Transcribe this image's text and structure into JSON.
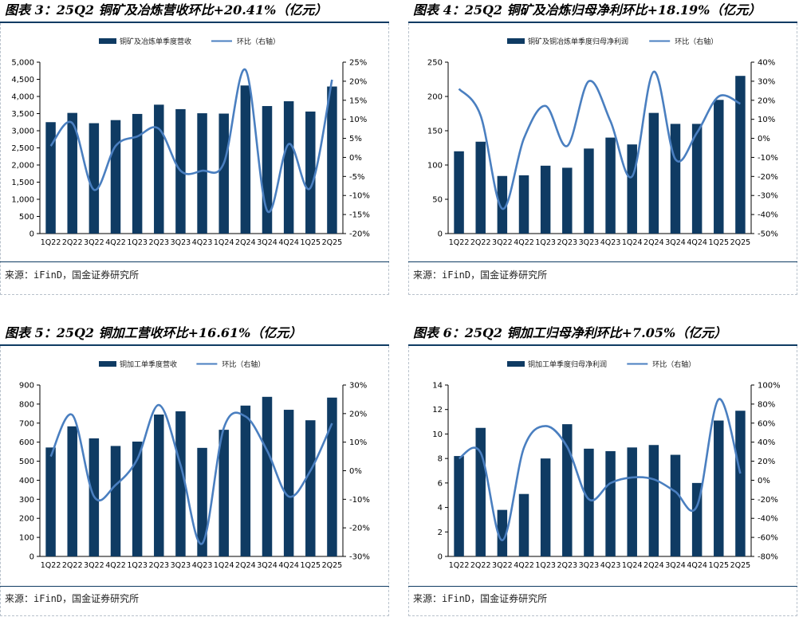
{
  "source_text": "来源：iFinD，国金证券研究所",
  "colors": {
    "bar": "#0f3b63",
    "line": "#4a7fc0",
    "axis": "#000000",
    "rule": "#0f3b63"
  },
  "chart_data": [
    {
      "type": "bar",
      "title": "图表 3：25Q2 铜矿及冶炼营收环比+20.41%（亿元）",
      "legend": [
        "铜矿及冶炼单季度营收",
        "环比（右轴）"
      ],
      "legend_position": "top",
      "categories": [
        "1Q22",
        "2Q22",
        "3Q22",
        "4Q22",
        "1Q23",
        "2Q23",
        "3Q23",
        "4Q23",
        "1Q24",
        "2Q24",
        "3Q24",
        "4Q24",
        "1Q25",
        "2Q25"
      ],
      "values": [
        3250,
        3520,
        3220,
        3310,
        3490,
        3760,
        3630,
        3510,
        3500,
        4320,
        3720,
        3860,
        3560,
        4290
      ],
      "line_values": [
        3,
        9,
        -8.5,
        3,
        5.5,
        7.5,
        -3.5,
        -3.5,
        -1.5,
        23,
        -14,
        3.5,
        -8,
        20.4
      ],
      "y_left": {
        "min": 0,
        "max": 5000,
        "step": 500,
        "ticks": [
          "0",
          "500",
          "1,000",
          "1,500",
          "2,000",
          "2,500",
          "3,000",
          "3,500",
          "4,000",
          "4,500",
          "5,000"
        ]
      },
      "y_right": {
        "min": -20,
        "max": 25,
        "step": 5,
        "ticks": [
          "-20%",
          "-15%",
          "-10%",
          "-5%",
          "0%",
          "5%",
          "10%",
          "15%",
          "20%",
          "25%"
        ]
      }
    },
    {
      "type": "bar",
      "title": "图表 4：25Q2 铜矿及冶炼归母净利环比+18.19%（亿元）",
      "legend": [
        "铜矿及铜冶炼单季度归母净利润",
        "环比（右轴）"
      ],
      "legend_position": "top",
      "categories": [
        "1Q22",
        "2Q22",
        "3Q22",
        "4Q22",
        "1Q23",
        "2Q23",
        "3Q23",
        "4Q23",
        "1Q24",
        "2Q24",
        "3Q24",
        "4Q24",
        "1Q25",
        "2Q25"
      ],
      "values": [
        120,
        134,
        84,
        85,
        99,
        96,
        124,
        140,
        130,
        176,
        160,
        160,
        195,
        230
      ],
      "line_values": [
        26,
        12,
        -37,
        0,
        17,
        -4,
        30,
        9,
        -20,
        35,
        -11,
        3,
        22,
        18.19
      ],
      "y_left": {
        "min": 0,
        "max": 250,
        "step": 50,
        "ticks": [
          "0",
          "50",
          "100",
          "150",
          "200",
          "250"
        ]
      },
      "y_right": {
        "min": -50,
        "max": 40,
        "step": 10,
        "ticks": [
          "-50%",
          "-40%",
          "-30%",
          "-20%",
          "-10%",
          "0%",
          "10%",
          "20%",
          "30%",
          "40%"
        ]
      }
    },
    {
      "type": "bar",
      "title": "图表 5：25Q2 铜加工营收环比+16.61%（亿元）",
      "legend": [
        "铜加工单季度营收",
        "环比（右轴）"
      ],
      "legend_position": "top",
      "categories": [
        "1Q22",
        "2Q22",
        "3Q22",
        "4Q22",
        "1Q23",
        "2Q23",
        "3Q23",
        "4Q23",
        "1Q24",
        "2Q24",
        "3Q24",
        "4Q24",
        "1Q25",
        "2Q25"
      ],
      "values": [
        572,
        683,
        620,
        580,
        603,
        745,
        762,
        570,
        665,
        792,
        838,
        770,
        715,
        834
      ],
      "line_values": [
        5,
        19.5,
        -9,
        -5,
        4,
        23,
        2,
        -25.5,
        15,
        19,
        7,
        -9,
        0,
        16.61
      ],
      "y_left": {
        "min": 0,
        "max": 900,
        "step": 100,
        "ticks": [
          "0",
          "100",
          "200",
          "300",
          "400",
          "500",
          "600",
          "700",
          "800",
          "900"
        ]
      },
      "y_right": {
        "min": -30,
        "max": 30,
        "step": 10,
        "ticks": [
          "-30%",
          "-20%",
          "-10%",
          "0%",
          "10%",
          "20%",
          "30%"
        ]
      }
    },
    {
      "type": "bar",
      "title": "图表 6：25Q2 铜加工归母净利环比+7.05%（亿元）",
      "legend": [
        "铜加工单季度归母净利润",
        "环比（右轴）"
      ],
      "legend_position": "top",
      "categories": [
        "1Q22",
        "2Q22",
        "3Q22",
        "4Q22",
        "1Q23",
        "2Q23",
        "3Q23",
        "4Q23",
        "1Q24",
        "2Q24",
        "3Q24",
        "4Q24",
        "1Q25",
        "2Q25"
      ],
      "values": [
        8.2,
        10.5,
        3.8,
        5.1,
        8.0,
        10.8,
        8.8,
        8.6,
        8.9,
        9.1,
        8.3,
        6.0,
        11.1,
        11.9
      ],
      "line_values": [
        23,
        29,
        -63,
        34,
        57,
        35,
        -20,
        -3,
        3,
        1,
        -12,
        -27,
        85,
        7.05
      ],
      "y_left": {
        "min": 0,
        "max": 14,
        "step": 2,
        "ticks": [
          "0",
          "2",
          "4",
          "6",
          "8",
          "10",
          "12",
          "14"
        ]
      },
      "y_right": {
        "min": -80,
        "max": 100,
        "step": 20,
        "ticks": [
          "-80%",
          "-60%",
          "-40%",
          "-20%",
          "0%",
          "20%",
          "40%",
          "60%",
          "80%",
          "100%"
        ]
      }
    }
  ]
}
